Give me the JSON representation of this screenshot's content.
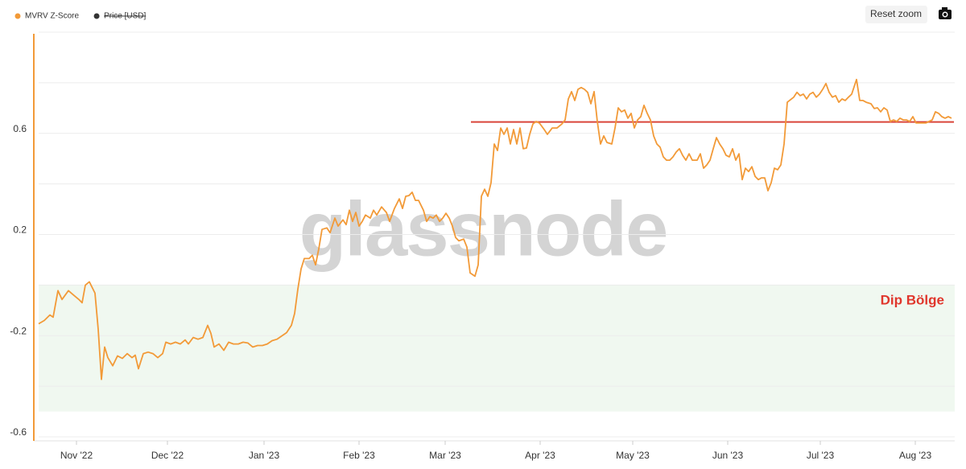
{
  "chart_data": {
    "type": "line",
    "legend": [
      {
        "name": "MVRV Z-Score",
        "color": "#f29a38"
      },
      {
        "name": "Price [USD]",
        "color": "#333333",
        "hidden": true
      }
    ],
    "buttons": {
      "reset": "Reset zoom"
    },
    "watermark": "glassnode",
    "annotation": {
      "text": "Dip Bölge",
      "color": "#e0362c"
    },
    "zone": {
      "range": [
        -0.5,
        0
      ],
      "color": "#eef7ee"
    },
    "hline": {
      "value": 0.645,
      "x": [
        537,
        1137
      ],
      "color": "#d9453a"
    },
    "ylim": [
      -0.6,
      1.0
    ],
    "yticks": [
      -0.6,
      -0.2,
      0.2,
      0.6
    ],
    "ygrid": [
      -0.6,
      -0.4,
      -0.2,
      0,
      0.2,
      0.4,
      0.6,
      0.8,
      1.0
    ],
    "grid": true,
    "xlim": [
      0,
      1138
    ],
    "xticks": [
      {
        "value": 47,
        "label": "Nov '22"
      },
      {
        "value": 160,
        "label": "Dec '22"
      },
      {
        "value": 280,
        "label": "Jan '23"
      },
      {
        "value": 398,
        "label": "Feb '23"
      },
      {
        "value": 505,
        "label": "Mar '23"
      },
      {
        "value": 623,
        "label": "Apr '23"
      },
      {
        "value": 738,
        "label": "May '23"
      },
      {
        "value": 856,
        "label": "Jun '23"
      },
      {
        "value": 971,
        "label": "Jul '23"
      },
      {
        "value": 1089,
        "label": "Aug '23"
      }
    ],
    "series": [
      {
        "name": "MVRV Z-Score",
        "color": "#f29a38",
        "x": [
          0,
          7,
          14,
          18,
          24,
          29,
          37,
          44,
          50,
          54,
          58,
          63,
          70,
          74,
          78,
          82,
          86,
          92,
          98,
          104,
          110,
          116,
          120,
          124,
          130,
          136,
          142,
          148,
          154,
          158,
          164,
          170,
          176,
          182,
          186,
          192,
          198,
          204,
          210,
          214,
          218,
          224,
          230,
          236,
          242,
          248,
          254,
          260,
          266,
          272,
          278,
          284,
          290,
          296,
          302,
          308,
          314,
          318,
          322,
          326,
          330,
          336,
          340,
          344,
          348,
          352,
          358,
          362,
          368,
          372,
          378,
          382,
          386,
          390,
          394,
          398,
          402,
          406,
          412,
          416,
          420,
          426,
          432,
          436,
          442,
          448,
          452,
          456,
          460,
          464,
          468,
          472,
          478,
          482,
          486,
          490,
          494,
          498,
          502,
          506,
          510,
          514,
          518,
          522,
          528,
          532,
          536,
          542,
          546,
          550,
          554,
          558,
          562,
          566,
          570,
          574,
          578,
          582,
          586,
          590,
          594,
          598,
          602,
          606,
          610,
          614,
          618,
          622,
          628,
          632,
          638,
          644,
          650,
          654,
          658,
          662,
          666,
          670,
          674,
          678,
          682,
          686,
          690,
          694,
          698,
          702,
          706,
          712,
          716,
          720,
          724,
          728,
          732,
          736,
          740,
          744,
          748,
          752,
          756,
          760,
          764,
          768,
          772,
          776,
          780,
          784,
          788,
          792,
          796,
          800,
          804,
          808,
          812,
          818,
          822,
          826,
          830,
          834,
          838,
          842,
          846,
          850,
          854,
          858,
          862,
          866,
          870,
          874,
          878,
          882,
          886,
          890,
          894,
          898,
          902,
          906,
          910,
          914,
          918,
          922,
          926,
          930,
          934,
          938,
          942,
          946,
          950,
          954,
          958,
          962,
          966,
          970,
          974,
          978,
          982,
          986,
          990,
          994,
          998,
          1002,
          1006,
          1010,
          1016,
          1020,
          1024,
          1028,
          1034,
          1038,
          1042,
          1046,
          1050,
          1054,
          1058,
          1062,
          1066,
          1070,
          1074,
          1078,
          1082,
          1086,
          1090,
          1094,
          1098,
          1102,
          1106,
          1110,
          1114,
          1118,
          1122,
          1126,
          1130,
          1134
        ],
        "values": [
          -0.153,
          -0.14,
          -0.118,
          -0.127,
          -0.022,
          -0.057,
          -0.022,
          -0.041,
          -0.057,
          -0.07,
          0,
          0.013,
          -0.032,
          -0.175,
          -0.373,
          -0.245,
          -0.287,
          -0.319,
          -0.28,
          -0.29,
          -0.271,
          -0.287,
          -0.277,
          -0.331,
          -0.271,
          -0.265,
          -0.271,
          -0.287,
          -0.271,
          -0.226,
          -0.233,
          -0.226,
          -0.233,
          -0.217,
          -0.233,
          -0.207,
          -0.214,
          -0.207,
          -0.159,
          -0.191,
          -0.245,
          -0.233,
          -0.258,
          -0.226,
          -0.233,
          -0.233,
          -0.226,
          -0.229,
          -0.245,
          -0.239,
          -0.239,
          -0.233,
          -0.22,
          -0.214,
          -0.201,
          -0.188,
          -0.159,
          -0.112,
          -0.016,
          0.064,
          0.105,
          0.105,
          0.118,
          0.08,
          0.143,
          0.22,
          0.226,
          0.207,
          0.265,
          0.233,
          0.258,
          0.239,
          0.296,
          0.252,
          0.287,
          0.233,
          0.252,
          0.277,
          0.265,
          0.296,
          0.277,
          0.309,
          0.287,
          0.252,
          0.303,
          0.341,
          0.303,
          0.351,
          0.354,
          0.367,
          0.335,
          0.335,
          0.296,
          0.252,
          0.271,
          0.265,
          0.277,
          0.252,
          0.265,
          0.284,
          0.265,
          0.233,
          0.188,
          0.175,
          0.182,
          0.15,
          0.048,
          0.035,
          0.08,
          0.351,
          0.379,
          0.351,
          0.405,
          0.558,
          0.532,
          0.621,
          0.596,
          0.621,
          0.558,
          0.615,
          0.558,
          0.621,
          0.539,
          0.542,
          0.596,
          0.637,
          0.647,
          0.641,
          0.615,
          0.596,
          0.621,
          0.621,
          0.637,
          0.653,
          0.736,
          0.765,
          0.73,
          0.774,
          0.781,
          0.774,
          0.762,
          0.717,
          0.765,
          0.647,
          0.558,
          0.59,
          0.564,
          0.558,
          0.621,
          0.701,
          0.685,
          0.692,
          0.66,
          0.679,
          0.621,
          0.653,
          0.666,
          0.711,
          0.679,
          0.653,
          0.59,
          0.558,
          0.545,
          0.507,
          0.494,
          0.494,
          0.507,
          0.526,
          0.539,
          0.513,
          0.494,
          0.519,
          0.494,
          0.494,
          0.519,
          0.462,
          0.475,
          0.494,
          0.539,
          0.583,
          0.558,
          0.539,
          0.513,
          0.507,
          0.539,
          0.494,
          0.519,
          0.417,
          0.462,
          0.449,
          0.468,
          0.43,
          0.417,
          0.424,
          0.424,
          0.373,
          0.405,
          0.462,
          0.456,
          0.475,
          0.558,
          0.723,
          0.733,
          0.743,
          0.762,
          0.749,
          0.755,
          0.736,
          0.755,
          0.762,
          0.743,
          0.755,
          0.774,
          0.797,
          0.762,
          0.743,
          0.749,
          0.723,
          0.736,
          0.73,
          0.743,
          0.755,
          0.813,
          0.73,
          0.73,
          0.723,
          0.717,
          0.698,
          0.701,
          0.685,
          0.701,
          0.692,
          0.647,
          0.653,
          0.647,
          0.66,
          0.653,
          0.653,
          0.647,
          0.666,
          0.641,
          0.641,
          0.641,
          0.641,
          0.647,
          0.653,
          0.685,
          0.679,
          0.666,
          0.66,
          0.666,
          0.66
        ]
      }
    ]
  }
}
